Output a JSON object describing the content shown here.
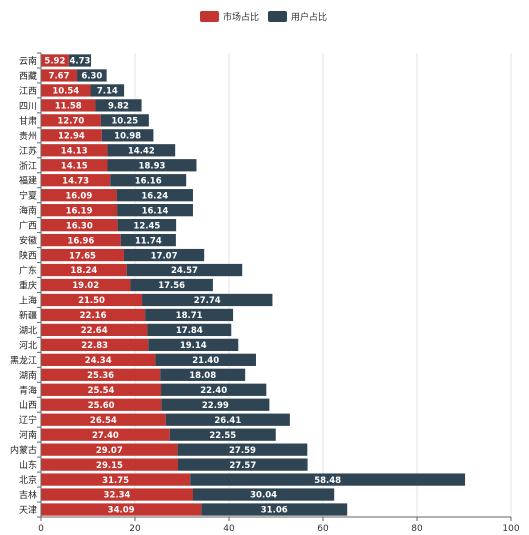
{
  "chart_data": {
    "type": "bar",
    "orientation": "horizontal",
    "stacked": true,
    "categories": [
      "云南",
      "西藏",
      "江西",
      "四川",
      "甘肃",
      "贵州",
      "江苏",
      "浙江",
      "福建",
      "宁夏",
      "海南",
      "广西",
      "安徽",
      "陕西",
      "广东",
      "重庆",
      "上海",
      "新疆",
      "湖北",
      "河北",
      "黑龙江",
      "湖南",
      "青海",
      "山西",
      "辽宁",
      "河南",
      "内蒙古",
      "山东",
      "北京",
      "吉林",
      "天津"
    ],
    "series": [
      {
        "name": "市场占比",
        "color": "#c23531",
        "values": [
          5.92,
          7.67,
          10.54,
          11.58,
          12.7,
          12.94,
          14.13,
          14.15,
          14.73,
          16.09,
          16.19,
          16.3,
          16.96,
          17.65,
          18.24,
          19.02,
          21.5,
          22.16,
          22.64,
          22.83,
          24.34,
          25.36,
          25.54,
          25.6,
          26.54,
          27.4,
          29.07,
          29.15,
          31.75,
          32.34,
          34.09
        ]
      },
      {
        "name": "用户占比",
        "color": "#2f4554",
        "values": [
          4.73,
          6.3,
          7.14,
          9.82,
          10.25,
          10.98,
          14.42,
          18.93,
          16.16,
          16.24,
          16.14,
          12.45,
          11.74,
          17.07,
          24.57,
          17.56,
          27.74,
          18.71,
          17.84,
          19.14,
          21.4,
          18.08,
          22.4,
          22.99,
          26.41,
          22.55,
          27.59,
          27.57,
          58.48,
          30.04,
          31.06
        ]
      }
    ],
    "value_labels": {
      "市场占比": [
        "5.92",
        "7.67",
        "10.54",
        "11.58",
        "12.70",
        "12.94",
        "14.13",
        "14.15",
        "14.73",
        "16.09",
        "16.19",
        "16.30",
        "16.96",
        "17.65",
        "18.24",
        "19.02",
        "21.50",
        "22.16",
        "22.64",
        "22.83",
        "24.34",
        "25.36",
        "25.54",
        "25.60",
        "26.54",
        "27.40",
        "29.07",
        "29.15",
        "31.75",
        "32.34",
        "34.09"
      ],
      "用户占比": [
        "4.73",
        "6.30",
        "7.14",
        "9.82",
        "10.25",
        "10.98",
        "14.42",
        "18.93",
        "16.16",
        "16.24",
        "16.14",
        "12.45",
        "11.74",
        "17.07",
        "24.57",
        "17.56",
        "27.74",
        "18.71",
        "17.84",
        "19.14",
        "21.40",
        "18.08",
        "22.40",
        "22.99",
        "26.41",
        "22.55",
        "27.59",
        "27.57",
        "58.48",
        "30.04",
        "31.06"
      ]
    },
    "x_ticks": [
      "0",
      "20",
      "40",
      "60",
      "80",
      "100"
    ],
    "xlim": [
      0,
      100
    ],
    "grid": true,
    "legend": "top-center"
  }
}
